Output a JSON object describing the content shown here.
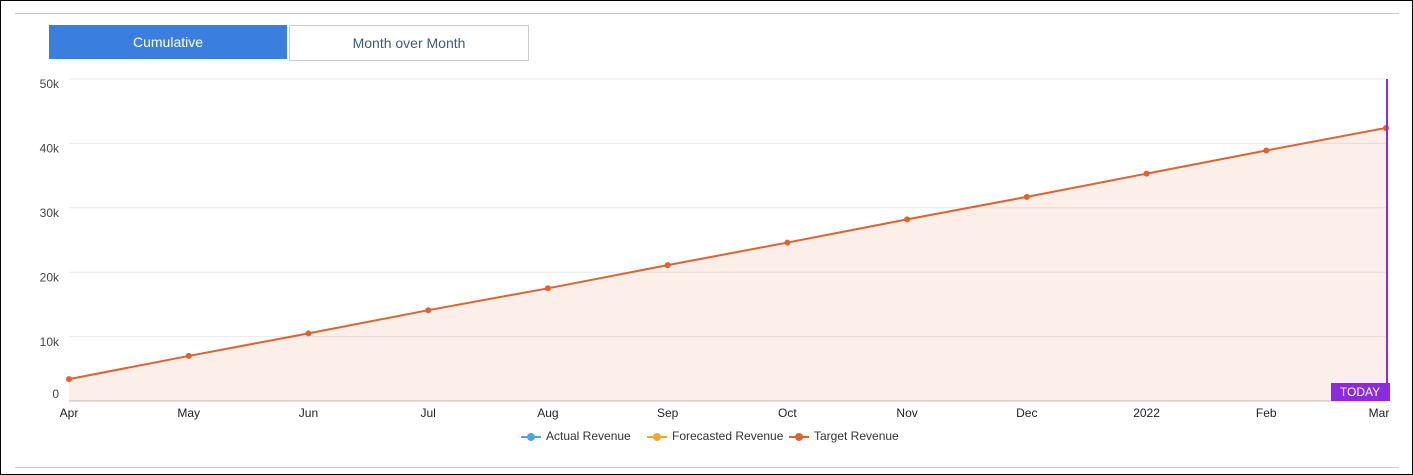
{
  "tabs": [
    "Cumulative",
    "Month over Month"
  ],
  "chart_data": {
    "type": "line",
    "area": true,
    "categories": [
      "Apr",
      "May",
      "Jun",
      "Jul",
      "Aug",
      "Sep",
      "Oct",
      "Nov",
      "Dec",
      "2022",
      "Feb",
      "Mar"
    ],
    "series": [
      {
        "name": "Actual Revenue",
        "color": "#4aa8d8",
        "values": [
          null,
          null,
          null,
          null,
          null,
          null,
          null,
          null,
          null,
          null,
          null,
          null
        ]
      },
      {
        "name": "Forecasted Revenue",
        "color": "#f5a623",
        "values": [
          null,
          null,
          null,
          null,
          null,
          null,
          null,
          null,
          null,
          null,
          null,
          null
        ]
      },
      {
        "name": "Target Revenue",
        "color": "#e0622f",
        "values": [
          3400,
          7000,
          10500,
          14100,
          17500,
          21100,
          24600,
          28200,
          31700,
          35300,
          38900,
          42400
        ]
      }
    ],
    "ylim": [
      0,
      50000
    ],
    "yticks": [
      0,
      {
        "value": 10000,
        "label": "10k"
      },
      {
        "value": 20000,
        "label": "20k"
      },
      {
        "value": 30000,
        "label": "30k"
      },
      {
        "value": 40000,
        "label": "40k"
      },
      {
        "value": 50000,
        "label": "50k"
      }
    ],
    "grid": true,
    "annotation": "TODAY",
    "annotation_color": "#8a2be2",
    "legend": "bottom"
  }
}
